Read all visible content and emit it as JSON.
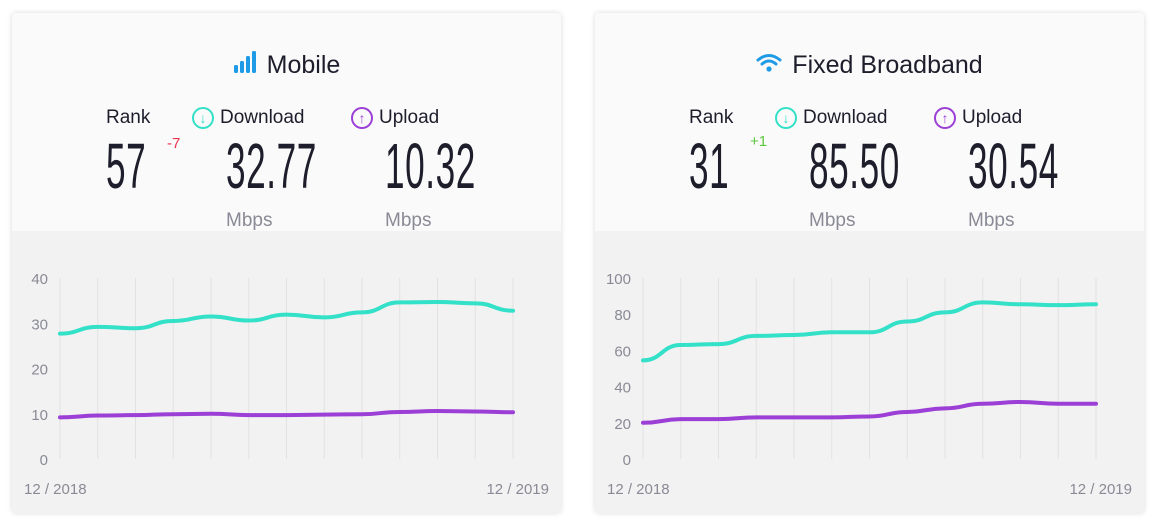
{
  "colors": {
    "download": "#33e0c8",
    "upload": "#9b3fd6",
    "rank_down": "#e8344e",
    "rank_up": "#5cc83c",
    "icon_blue": "#1e9be6"
  },
  "labels": {
    "rank": "Rank",
    "download": "Download",
    "upload": "Upload",
    "unit": "Mbps"
  },
  "cards": [
    {
      "title": "Mobile",
      "icon": "signal-bars-icon",
      "rank": "57",
      "rank_change": "-7",
      "download": "32.77",
      "upload": "10.32"
    },
    {
      "title": "Fixed Broadband",
      "icon": "wifi-icon",
      "rank": "31",
      "rank_change": "+1",
      "download": "85.50",
      "upload": "30.54"
    }
  ],
  "chart_data": [
    {
      "type": "line",
      "x_tick_labels": [
        "12 / 2018",
        "12 / 2019"
      ],
      "ylim": [
        0,
        40
      ],
      "yticks": [
        0,
        10,
        20,
        30,
        40
      ],
      "grid": "vertical",
      "series": [
        {
          "name": "Download",
          "values": [
            27.7,
            29.2,
            28.9,
            30.5,
            31.5,
            30.6,
            31.9,
            31.3,
            32.4,
            34.6,
            34.7,
            34.4,
            32.77
          ]
        },
        {
          "name": "Upload",
          "values": [
            9.2,
            9.6,
            9.7,
            9.9,
            10.0,
            9.7,
            9.7,
            9.8,
            9.9,
            10.4,
            10.6,
            10.5,
            10.32
          ]
        }
      ]
    },
    {
      "type": "line",
      "x_tick_labels": [
        "12 / 2018",
        "12 / 2019"
      ],
      "ylim": [
        0,
        100
      ],
      "yticks": [
        0,
        20,
        40,
        60,
        80,
        100
      ],
      "grid": "vertical",
      "series": [
        {
          "name": "Download",
          "values": [
            54.5,
            63,
            63.5,
            68,
            68.5,
            70,
            70,
            76,
            81,
            86.5,
            85.5,
            85,
            85.5
          ]
        },
        {
          "name": "Upload",
          "values": [
            20,
            22,
            22,
            23,
            23,
            23,
            23.5,
            26,
            28,
            30.5,
            31.5,
            30.5,
            30.54
          ]
        }
      ]
    }
  ]
}
